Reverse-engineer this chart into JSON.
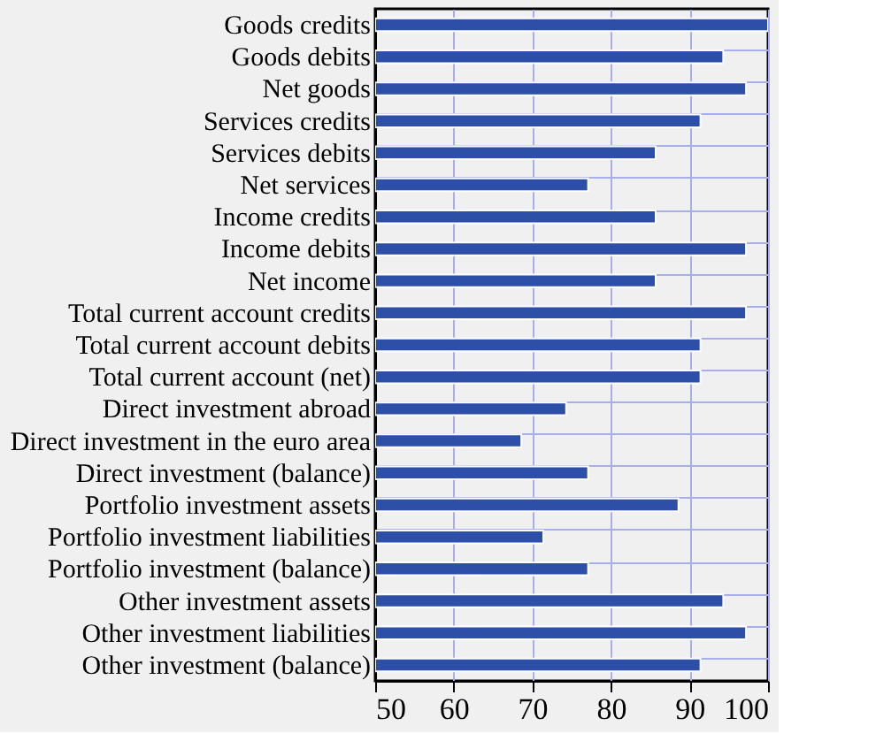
{
  "chart_data": {
    "type": "bar",
    "orientation": "horizontal",
    "categories": [
      "Goods credits",
      "Goods debits",
      "Net goods",
      "Services credits",
      "Services debits",
      "Net services",
      "Income credits",
      "Income debits",
      "Net income",
      "Total current account credits",
      "Total current account debits",
      "Total current account (net)",
      "Direct investment abroad",
      "Direct investment in the euro area",
      "Direct investment (balance)",
      "Portfolio investment assets",
      "Portfolio investment liabilities",
      "Portfolio investment (balance)",
      "Other investment assets",
      "Other investment liabilities",
      "Other investment (balance)"
    ],
    "values": [
      100,
      94.3,
      97.2,
      91.4,
      85.7,
      77.1,
      85.7,
      97.2,
      85.7,
      97.2,
      91.4,
      91.4,
      74.3,
      68.6,
      77.1,
      88.6,
      71.4,
      77.1,
      94.3,
      97.2,
      91.4
    ],
    "color": "#2e4fa8",
    "xlim": [
      50,
      100
    ],
    "xticks": [
      50,
      60,
      70,
      80,
      90,
      100
    ],
    "grid": true
  }
}
